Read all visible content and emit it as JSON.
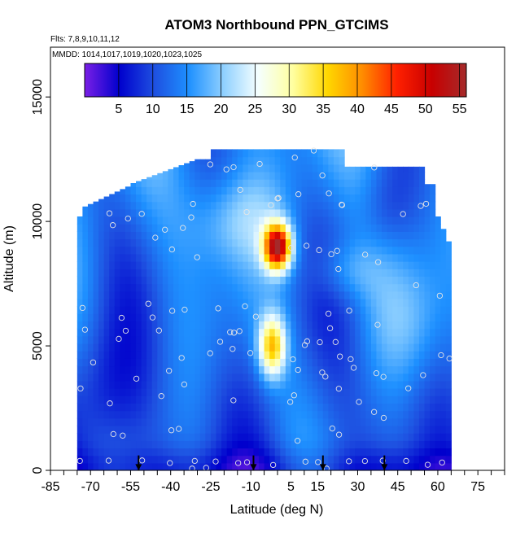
{
  "chart_data": {
    "type": "heatmap",
    "title": "ATOM3 Northbound PPN_GTCIMS",
    "subtitle_lines": [
      "Flts: 7,8,9,10,11,12",
      "MMDD: 1014,1017,1019,1020,1023,1025"
    ],
    "xlabel": "Latitude (deg N)",
    "ylabel": "Altitude (m)",
    "xlim": [
      -85,
      85
    ],
    "ylim": [
      0,
      17000
    ],
    "x_ticks": [
      -85,
      -70,
      -55,
      -40,
      -25,
      -10,
      5,
      15,
      30,
      45,
      60,
      75
    ],
    "y_ticks": [
      0,
      5000,
      10000,
      15000
    ],
    "colorbar": {
      "range": [
        0,
        56
      ],
      "ticks": [
        5,
        10,
        15,
        20,
        25,
        30,
        35,
        40,
        45,
        50,
        55
      ],
      "colors": [
        "#7a1fe6",
        "#0000cd",
        "#1e4fe0",
        "#1e90ff",
        "#8fd0ff",
        "#f5ffff",
        "#ffffa0",
        "#ffd700",
        "#ff8c00",
        "#ff2000",
        "#c80000",
        "#a52a2a"
      ]
    },
    "grid": false,
    "arrow_latitudes": [
      -52,
      -9,
      17,
      40
    ],
    "value_grid": {
      "lat_range": [
        -75,
        65
      ],
      "alt_range": [
        0,
        13500
      ],
      "notable_regions": [
        {
          "feature": "high",
          "lat": 0,
          "alt": 9000,
          "value": 52
        },
        {
          "feature": "high",
          "lat": -2,
          "alt": 5000,
          "value": 35
        },
        {
          "feature": "low",
          "lat": -65,
          "alt": 3000,
          "value": 5
        }
      ]
    }
  }
}
